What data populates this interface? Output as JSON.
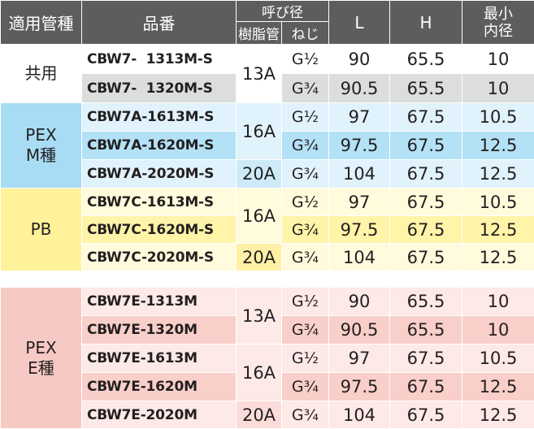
{
  "header": {
    "col_type": "適用管種",
    "col_part": "品番",
    "col_nominal": "呼び径",
    "col_resin": "樹脂管",
    "col_thread": "ねじ",
    "col_L": "L",
    "col_H": "H",
    "col_min_line1": "最小",
    "col_min_line2": "内径"
  },
  "groups": [
    {
      "type_lines": [
        "共用"
      ],
      "rows": [
        {
          "part": "CBW7-  1313M-S",
          "resin": "13A",
          "thread": "G½",
          "L": "90",
          "H": "65.5",
          "min": "10"
        },
        {
          "part": "CBW7-  1320M-S",
          "resin": "",
          "thread": "G¾",
          "L": "90.5",
          "H": "65.5",
          "min": "10"
        }
      ]
    },
    {
      "type_lines": [
        "PEX",
        "M種"
      ],
      "rows": [
        {
          "part": "CBW7A-1613M-S",
          "resin": "16A",
          "thread": "G½",
          "L": "97",
          "H": "67.5",
          "min": "10.5"
        },
        {
          "part": "CBW7A-1620M-S",
          "resin": "",
          "thread": "G¾",
          "L": "97.5",
          "H": "67.5",
          "min": "12.5"
        },
        {
          "part": "CBW7A-2020M-S",
          "resin": "20A",
          "thread": "G¾",
          "L": "104",
          "H": "67.5",
          "min": "12.5"
        }
      ]
    },
    {
      "type_lines": [
        "PB"
      ],
      "rows": [
        {
          "part": "CBW7C-1613M-S",
          "resin": "16A",
          "thread": "G½",
          "L": "97",
          "H": "67.5",
          "min": "10.5"
        },
        {
          "part": "CBW7C-1620M-S",
          "resin": "",
          "thread": "G¾",
          "L": "97.5",
          "H": "67.5",
          "min": "12.5"
        },
        {
          "part": "CBW7C-2020M-S",
          "resin": "20A",
          "thread": "G¾",
          "L": "104",
          "H": "67.5",
          "min": "12.5"
        }
      ]
    },
    {
      "type_lines": [
        "PEX",
        "E種"
      ],
      "rows": [
        {
          "part": "CBW7E-1313M",
          "resin": "13A",
          "thread": "G½",
          "L": "90",
          "H": "65.5",
          "min": "10"
        },
        {
          "part": "CBW7E-1320M",
          "resin": "",
          "thread": "G¾",
          "L": "90.5",
          "H": "65.5",
          "min": "10"
        },
        {
          "part": "CBW7E-1613M",
          "resin": "16A",
          "thread": "G½",
          "L": "97",
          "H": "67.5",
          "min": "10.5"
        },
        {
          "part": "CBW7E-1620M",
          "resin": "",
          "thread": "G¾",
          "L": "97.5",
          "H": "67.5",
          "min": "12.5"
        },
        {
          "part": "CBW7E-2020M",
          "resin": "20A",
          "thread": "G¾",
          "L": "104",
          "H": "67.5",
          "min": "12.5"
        }
      ]
    }
  ],
  "colors": {
    "header_bg": "#5d5d5f",
    "blue_category": "#a7dcf4",
    "yellow_category": "#fff29a",
    "pink_category": "#f7c9c4"
  }
}
